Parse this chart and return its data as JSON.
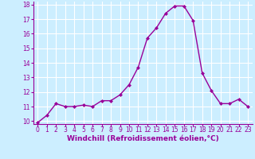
{
  "x": [
    0,
    1,
    2,
    3,
    4,
    5,
    6,
    7,
    8,
    9,
    10,
    11,
    12,
    13,
    14,
    15,
    16,
    17,
    18,
    19,
    20,
    21,
    22,
    23
  ],
  "y": [
    9.9,
    10.4,
    11.2,
    11.0,
    11.0,
    11.1,
    11.0,
    11.4,
    11.4,
    11.8,
    12.5,
    13.7,
    15.7,
    16.4,
    17.4,
    17.9,
    17.9,
    16.9,
    13.3,
    12.1,
    11.2,
    11.2,
    11.5,
    11.0
  ],
  "line_color": "#990099",
  "marker": "D",
  "marker_size": 2.0,
  "linewidth": 1.0,
  "xlabel": "Windchill (Refroidissement éolien,°C)",
  "xlabel_fontsize": 6.5,
  "bg_color": "#cceeff",
  "grid_color": "#ffffff",
  "ylim": [
    9.8,
    18.2
  ],
  "yticks": [
    10,
    11,
    12,
    13,
    14,
    15,
    16,
    17,
    18
  ],
  "xticks": [
    0,
    1,
    2,
    3,
    4,
    5,
    6,
    7,
    8,
    9,
    10,
    11,
    12,
    13,
    14,
    15,
    16,
    17,
    18,
    19,
    20,
    21,
    22,
    23
  ],
  "tick_fontsize": 5.5,
  "tick_color": "#990099",
  "label_color": "#990099",
  "spine_color": "#990099"
}
